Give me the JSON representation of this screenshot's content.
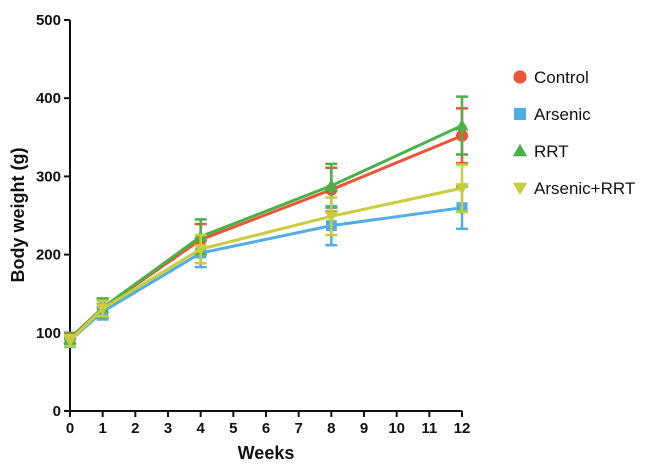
{
  "chart_data": {
    "type": "line",
    "title": "",
    "xlabel": "Weeks",
    "ylabel": "Body weight (g)",
    "xlim": [
      0,
      12
    ],
    "ylim": [
      0,
      500
    ],
    "x_ticks": [
      0,
      1,
      2,
      3,
      4,
      5,
      6,
      7,
      8,
      9,
      10,
      11,
      12
    ],
    "y_ticks": [
      0,
      100,
      200,
      300,
      400,
      500
    ],
    "grid": false,
    "legend_position": "right",
    "x": [
      0,
      1,
      4,
      8,
      12
    ],
    "series": [
      {
        "name": "Control",
        "color": "#e8553a",
        "marker": "circle",
        "values": [
          93,
          132,
          219,
          283,
          352
        ],
        "errors": [
          7,
          11,
          20,
          28,
          35
        ]
      },
      {
        "name": "Arsenic",
        "color": "#52aee2",
        "marker": "square",
        "values": [
          90,
          127,
          202,
          237,
          260
        ],
        "errors": [
          8,
          10,
          18,
          25,
          27
        ]
      },
      {
        "name": "RRT",
        "color": "#4bb048",
        "marker": "triangle",
        "values": [
          92,
          132,
          223,
          288,
          365
        ],
        "errors": [
          7,
          12,
          22,
          28,
          37
        ]
      },
      {
        "name": "Arsenic+RRT",
        "color": "#c9cc3c",
        "marker": "triangle-down",
        "values": [
          90,
          131,
          207,
          249,
          285
        ],
        "errors": [
          7,
          10,
          18,
          24,
          30
        ]
      }
    ]
  }
}
